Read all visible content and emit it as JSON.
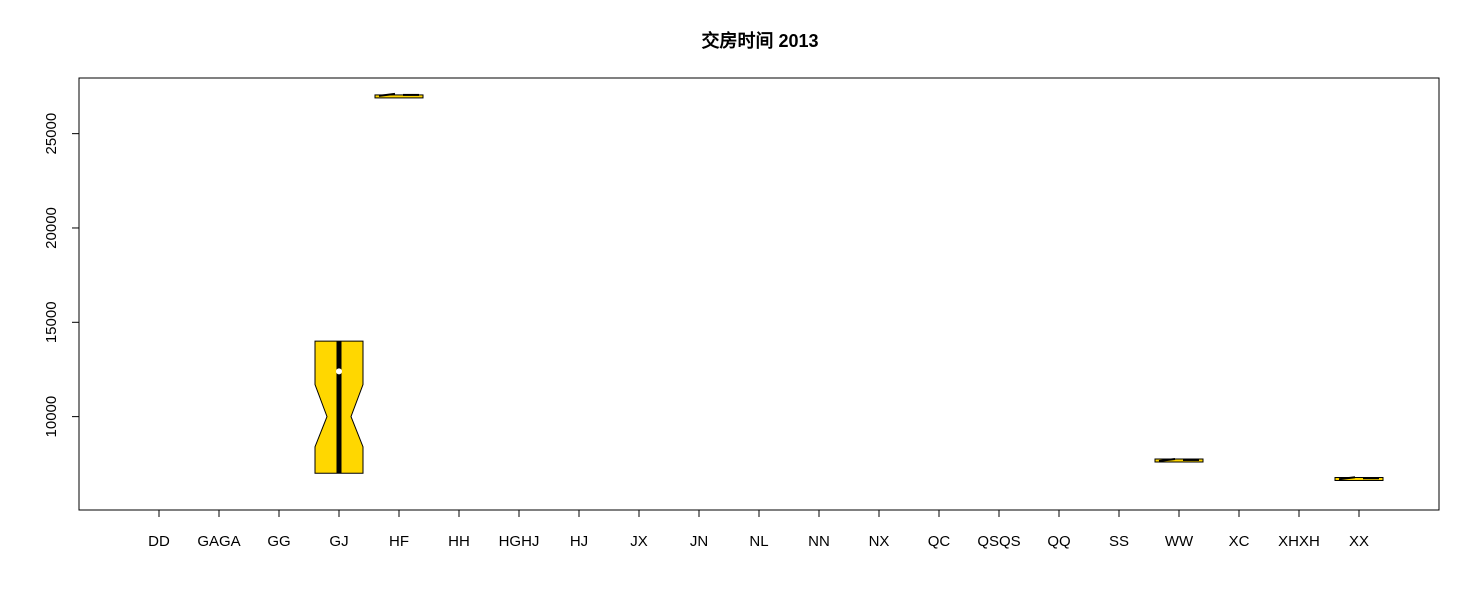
{
  "chart_data": {
    "type": "boxplot",
    "title": "交房时间 2013",
    "xlabel": "",
    "ylabel": "",
    "categories": [
      "DD",
      "GAGA",
      "GG",
      "GJ",
      "HF",
      "HH",
      "HGHJ",
      "HJ",
      "JX",
      "JN",
      "NL",
      "NN",
      "NX",
      "QC",
      "QSQS",
      "QQ",
      "SS",
      "WW",
      "XC",
      "XHXH",
      "XX"
    ],
    "ylim": [
      5050,
      27950
    ],
    "y_ticks": [
      10000,
      15000,
      20000,
      25000
    ],
    "notched": true,
    "box_fill": "#FFD700",
    "median_color": "#000000",
    "mean_marker_color": "#ffffff",
    "boxes": [
      {
        "category": "GJ",
        "q1": 7000,
        "median": 10000,
        "q3": 14000,
        "mean": 12400,
        "notch_low": 8400,
        "notch_high": 11700
      },
      {
        "category": "HF",
        "q1": 27000,
        "median": 27000,
        "q3": 27000
      },
      {
        "category": "WW",
        "q1": 7600,
        "median": 7650,
        "q3": 7700
      },
      {
        "category": "XX",
        "q1": 6650,
        "median": 6680,
        "q3": 6720
      }
    ]
  }
}
